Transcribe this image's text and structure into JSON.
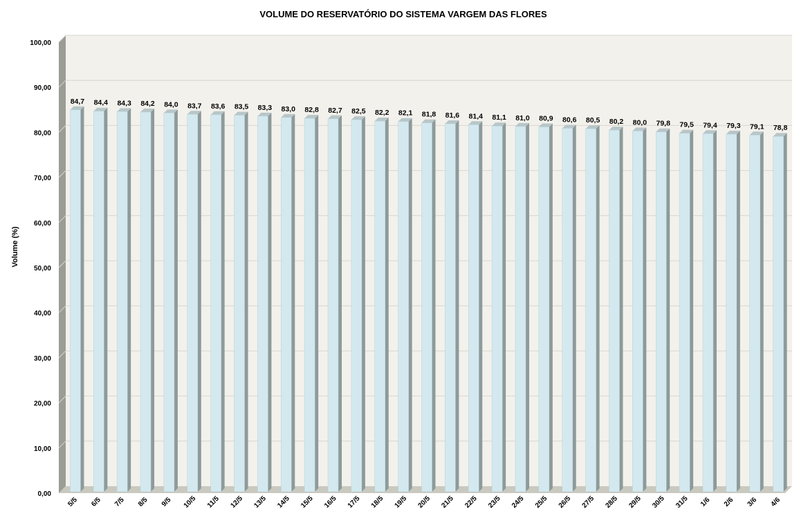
{
  "chart_data": {
    "type": "bar",
    "title": "VOLUME DO RESERVATÓRIO DO SISTEMA VARGEM DAS FLORES",
    "ylabel": "Volume (%)",
    "xlabel": "",
    "ylim": [
      0,
      100
    ],
    "yticks": [
      "0,00",
      "10,00",
      "20,00",
      "30,00",
      "40,00",
      "50,00",
      "60,00",
      "70,00",
      "80,00",
      "90,00",
      "100,00"
    ],
    "ytick_values": [
      0,
      10,
      20,
      30,
      40,
      50,
      60,
      70,
      80,
      90,
      100
    ],
    "categories": [
      "5/5",
      "6/5",
      "7/5",
      "8/5",
      "9/5",
      "10/5",
      "11/5",
      "12/5",
      "13/5",
      "14/5",
      "15/5",
      "16/5",
      "17/5",
      "18/5",
      "19/5",
      "20/5",
      "21/5",
      "22/5",
      "23/5",
      "24/5",
      "25/5",
      "26/5",
      "27/5",
      "28/5",
      "29/5",
      "30/5",
      "31/5",
      "1/6",
      "2/6",
      "3/6",
      "4/6"
    ],
    "values": [
      84.7,
      84.4,
      84.3,
      84.2,
      84.0,
      83.7,
      83.6,
      83.5,
      83.3,
      83.0,
      82.8,
      82.7,
      82.5,
      82.2,
      82.1,
      81.8,
      81.6,
      81.4,
      81.1,
      81.0,
      80.9,
      80.6,
      80.5,
      80.2,
      80.0,
      79.8,
      79.5,
      79.4,
      79.3,
      79.1,
      78.8
    ],
    "data_labels": [
      "84,7",
      "84,4",
      "84,3",
      "84,2",
      "84,0",
      "83,7",
      "83,6",
      "83,5",
      "83,3",
      "83,0",
      "82,8",
      "82,7",
      "82,5",
      "82,2",
      "82,1",
      "81,8",
      "81,6",
      "81,4",
      "81,1",
      "81,0",
      "80,9",
      "80,6",
      "80,5",
      "80,2",
      "80,0",
      "79,8",
      "79,5",
      "79,4",
      "79,3",
      "79,1",
      "78,8"
    ],
    "grid": true,
    "legend": "none",
    "colors": {
      "bar_front": "#d3e9ef",
      "bar_side": "#8e9a9a",
      "bar_top": "#b8c6c8",
      "plot_bg": "#f3f1ec",
      "wall_side": "#9a9d95",
      "floor": "#c9c9c0",
      "grid": "#d8d6cf"
    }
  }
}
